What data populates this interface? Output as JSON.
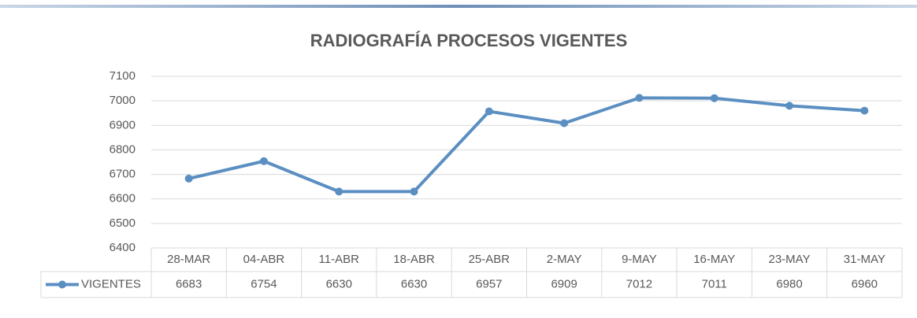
{
  "chart_data": {
    "type": "line",
    "title": "RADIOGRAFÍA PROCESOS VIGENTES",
    "categories": [
      "28-MAR",
      "04-ABR",
      "11-ABR",
      "18-ABR",
      "25-ABR",
      "2-MAY",
      "9-MAY",
      "16-MAY",
      "23-MAY",
      "31-MAY"
    ],
    "series": [
      {
        "name": "VIGENTES",
        "color": "#5b8fc2",
        "values": [
          6683,
          6754,
          6630,
          6630,
          6957,
          6909,
          7012,
          7011,
          6980,
          6960
        ]
      }
    ],
    "ylim": [
      6400,
      7100
    ],
    "yticks": [
      6400,
      6500,
      6600,
      6700,
      6800,
      6900,
      7000,
      7100
    ],
    "grid": true
  }
}
